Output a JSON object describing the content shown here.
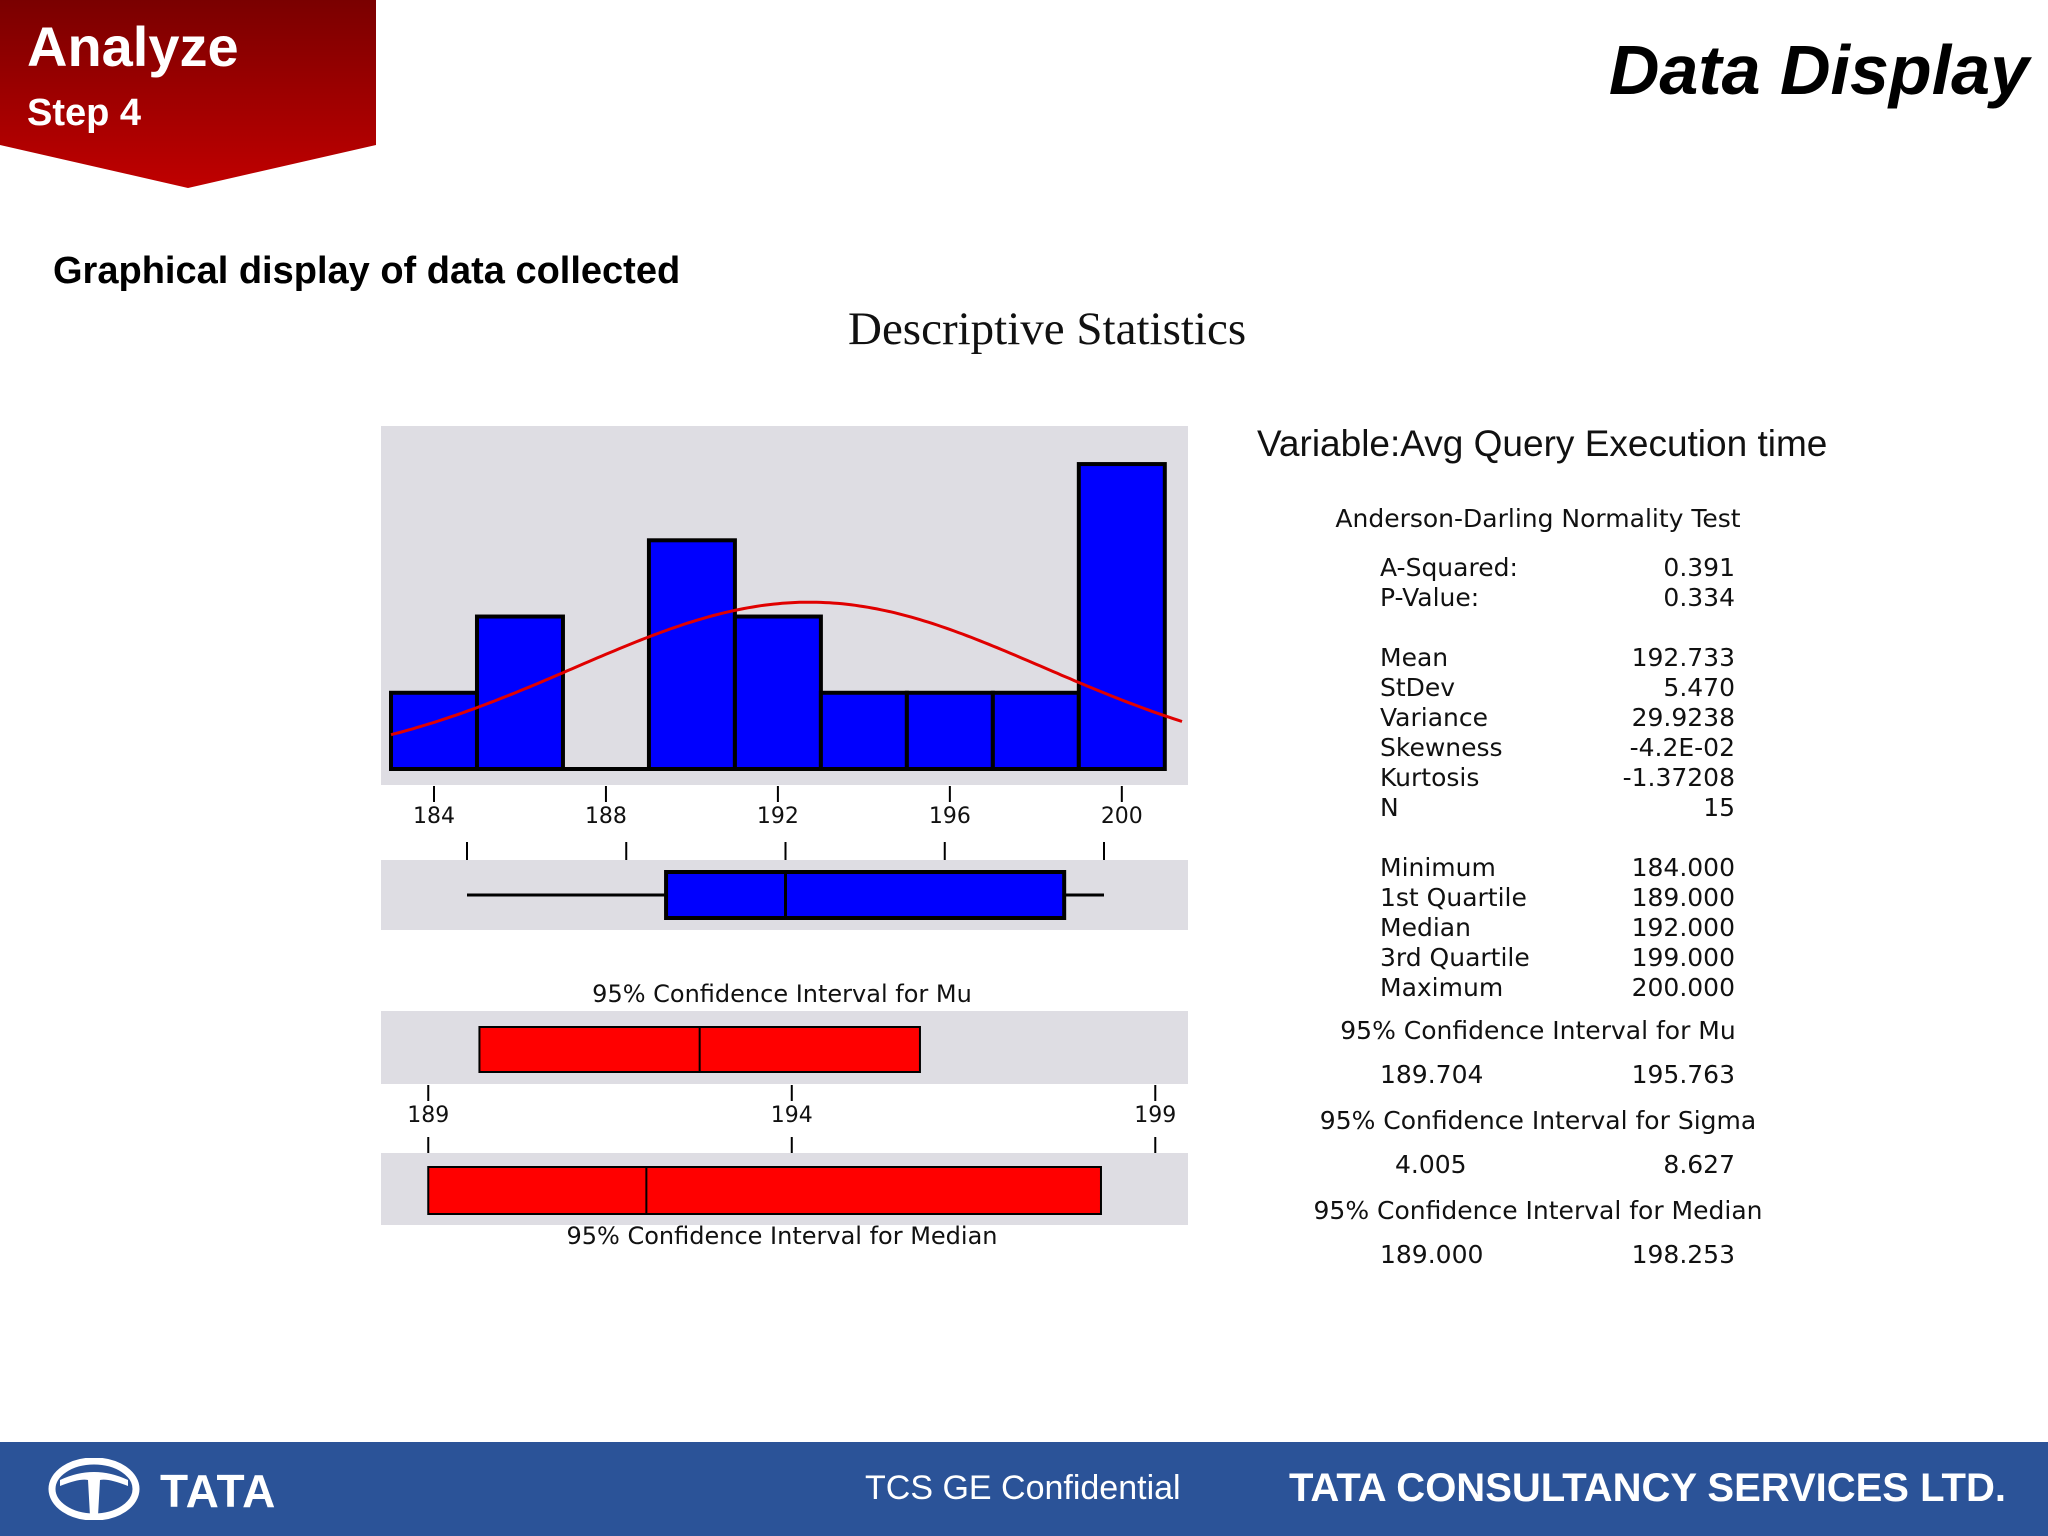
{
  "header": {
    "badge_title": "Analyze",
    "badge_step": "Step 4",
    "slide_title": "Data Display",
    "subtitle": "Graphical display of data collected",
    "badge_color": "#b20000"
  },
  "chart_data": {
    "type": "bar",
    "title": "Descriptive Statistics",
    "histogram": {
      "bin_edges": [
        183,
        185,
        187,
        189,
        191,
        193,
        195,
        197,
        199,
        201
      ],
      "counts": [
        1,
        2,
        0,
        3,
        2,
        1,
        1,
        1,
        4
      ],
      "ylim": [
        0,
        4.25
      ],
      "bar_color": "#0000ff",
      "curve_color": "#e00000",
      "xticks": [
        "184",
        "188",
        "192",
        "196",
        "200"
      ],
      "xlim": [
        183,
        201.4
      ]
    },
    "boxplot": {
      "min": 184,
      "q1": 189,
      "median": 192,
      "q3": 199,
      "max": 200,
      "ticks": [
        184,
        188,
        192,
        196,
        200
      ]
    },
    "ci_mu": {
      "label": "95% Confidence Interval for Mu",
      "low": 189.704,
      "high": 195.763,
      "center": 192.733,
      "color": "#ff0000"
    },
    "ci_median": {
      "label": "95% Confidence Interval for Median",
      "low": 189.0,
      "high": 198.253,
      "center": 192.0,
      "color": "#ff0000"
    },
    "ci_axis": {
      "ticks": [
        "189",
        "194",
        "199"
      ],
      "xlim": [
        188.35,
        199.45
      ]
    },
    "mean": 192.733,
    "stdev": 5.47
  },
  "stats": {
    "variable": "Variable:Avg Query Execution time",
    "ad_header": "Anderson-Darling Normality Test",
    "rows": [
      {
        "label": "A-Squared:",
        "value": "0.391"
      },
      {
        "label": "P-Value:",
        "value": "0.334"
      },
      {
        "label": "Mean",
        "value": "192.733"
      },
      {
        "label": "StDev",
        "value": "5.470"
      },
      {
        "label": "Variance",
        "value": "29.9238"
      },
      {
        "label": "Skewness",
        "value": "-4.2E-02"
      },
      {
        "label": "Kurtosis",
        "value": "-1.37208"
      },
      {
        "label": "N",
        "value": "15"
      },
      {
        "label": "Minimum",
        "value": "184.000"
      },
      {
        "label": "1st Quartile",
        "value": "189.000"
      },
      {
        "label": "Median",
        "value": "192.000"
      },
      {
        "label": "3rd Quartile",
        "value": "199.000"
      },
      {
        "label": "Maximum",
        "value": "200.000"
      }
    ],
    "ci_mu_header": "95% Confidence Interval for Mu",
    "ci_mu_low": "189.704",
    "ci_mu_high": "195.763",
    "ci_sigma_header": "95% Confidence Interval for Sigma",
    "ci_sigma_low": "4.005",
    "ci_sigma_high": "8.627",
    "ci_median_header": "95% Confidence Interval for Median",
    "ci_median_low": "189.000",
    "ci_median_high": "198.253"
  },
  "footer": {
    "brand": "TATA",
    "center_text": "TCS GE Confidential",
    "company": "TATA CONSULTANCY SERVICES LTD.",
    "bg_color": "#2b5398"
  }
}
